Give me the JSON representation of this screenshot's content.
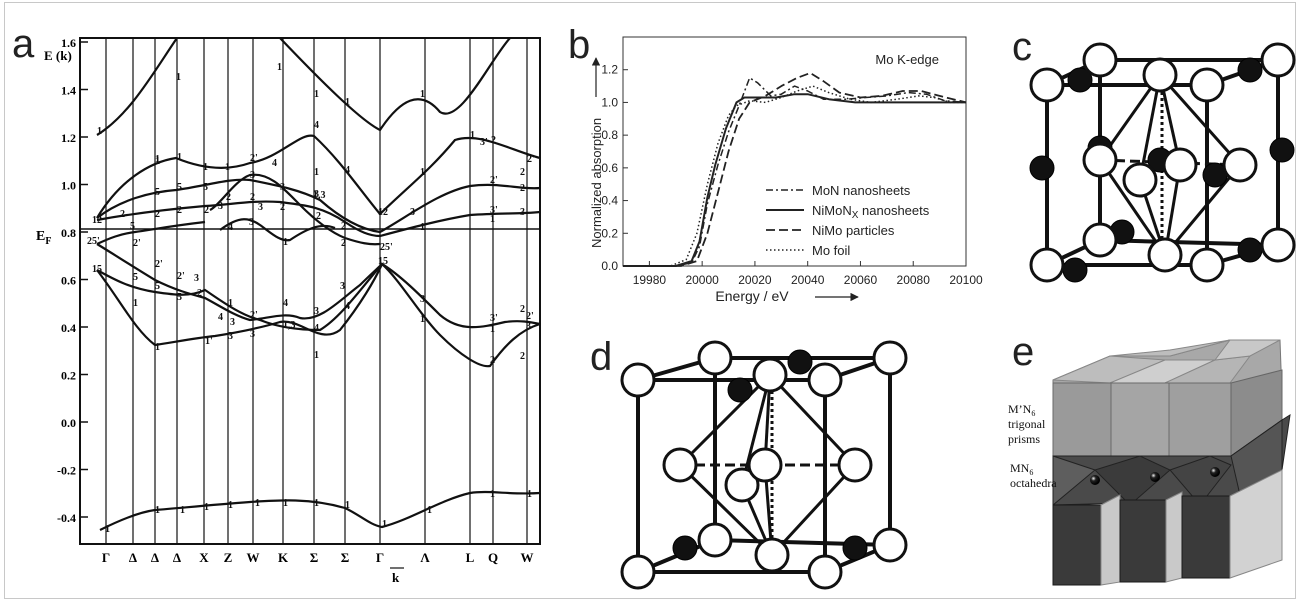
{
  "panels": {
    "a": {
      "label": "a",
      "y_axis_label": "E (k)",
      "fermi_label": "E",
      "fermi_sub": "F",
      "k_label": "k",
      "y_ticks": [
        "1.6",
        "1.4",
        "1.2",
        "1.0",
        "0.8",
        "0.6",
        "0.4",
        "0.2",
        "0.0",
        "-0.2",
        "-0.4"
      ],
      "k_points": [
        "Γ",
        "Δ",
        "Δ",
        "Δ",
        "X",
        "Z",
        "W",
        "K",
        "Σ",
        "Σ",
        "Γ",
        "Λ",
        "L",
        "Q",
        "W"
      ],
      "band_labels": [
        {
          "t": "1",
          "x": 97,
          "y": 134
        },
        {
          "t": "1",
          "x": 155,
          "y": 164
        },
        {
          "t": "1",
          "x": 176,
          "y": 80
        },
        {
          "t": "1",
          "x": 277,
          "y": 70
        },
        {
          "t": "1",
          "x": 314,
          "y": 97
        },
        {
          "t": "1",
          "x": 345,
          "y": 105
        },
        {
          "t": "1",
          "x": 420,
          "y": 97
        },
        {
          "t": "1",
          "x": 470,
          "y": 138
        },
        {
          "t": "4",
          "x": 314,
          "y": 128
        },
        {
          "t": "4",
          "x": 345,
          "y": 173
        },
        {
          "t": "4",
          "x": 272,
          "y": 166
        },
        {
          "t": "1",
          "x": 155,
          "y": 162
        },
        {
          "t": "1",
          "x": 177,
          "y": 160
        },
        {
          "t": "1",
          "x": 203,
          "y": 170
        },
        {
          "t": "1",
          "x": 225,
          "y": 170
        },
        {
          "t": "2'",
          "x": 250,
          "y": 161
        },
        {
          "t": "1",
          "x": 314,
          "y": 175
        },
        {
          "t": "5",
          "x": 155,
          "y": 195
        },
        {
          "t": "5",
          "x": 177,
          "y": 190
        },
        {
          "t": "5",
          "x": 203,
          "y": 190
        },
        {
          "t": "3",
          "x": 250,
          "y": 178
        },
        {
          "t": "3",
          "x": 280,
          "y": 190
        },
        {
          "t": "3",
          "x": 314,
          "y": 197
        },
        {
          "t": "1,3",
          "x": 313,
          "y": 198
        },
        {
          "t": "1",
          "x": 420,
          "y": 175
        },
        {
          "t": "3'",
          "x": 480,
          "y": 145
        },
        {
          "t": "2'",
          "x": 490,
          "y": 183
        },
        {
          "t": "3'",
          "x": 490,
          "y": 213
        },
        {
          "t": "2",
          "x": 491,
          "y": 143
        },
        {
          "t": "2",
          "x": 520,
          "y": 175
        },
        {
          "t": "2",
          "x": 520,
          "y": 191
        },
        {
          "t": "3",
          "x": 520,
          "y": 215
        },
        {
          "t": "2'",
          "x": 527,
          "y": 162
        },
        {
          "t": "12",
          "x": 92,
          "y": 223
        },
        {
          "t": "2",
          "x": 120,
          "y": 217
        },
        {
          "t": "5",
          "x": 130,
          "y": 229
        },
        {
          "t": "2",
          "x": 155,
          "y": 217
        },
        {
          "t": "2",
          "x": 177,
          "y": 213
        },
        {
          "t": "2",
          "x": 204,
          "y": 213
        },
        {
          "t": "3",
          "x": 218,
          "y": 209
        },
        {
          "t": "2",
          "x": 226,
          "y": 200
        },
        {
          "t": "2",
          "x": 250,
          "y": 200
        },
        {
          "t": "3",
          "x": 258,
          "y": 210
        },
        {
          "t": "2",
          "x": 280,
          "y": 210
        },
        {
          "t": "2",
          "x": 316,
          "y": 219
        },
        {
          "t": "4",
          "x": 228,
          "y": 230
        },
        {
          "t": "3",
          "x": 249,
          "y": 225
        },
        {
          "t": "1",
          "x": 283,
          "y": 245
        },
        {
          "t": "2",
          "x": 341,
          "y": 229
        },
        {
          "t": "12",
          "x": 378,
          "y": 215
        },
        {
          "t": "3",
          "x": 410,
          "y": 215
        },
        {
          "t": "1",
          "x": 420,
          "y": 230
        },
        {
          "t": "1",
          "x": 490,
          "y": 222
        },
        {
          "t": "25'",
          "x": 87,
          "y": 244
        },
        {
          "t": "2'",
          "x": 133,
          "y": 246
        },
        {
          "t": "2",
          "x": 341,
          "y": 246
        },
        {
          "t": "25'",
          "x": 380,
          "y": 250
        },
        {
          "t": "15",
          "x": 92,
          "y": 272
        },
        {
          "t": "5",
          "x": 133,
          "y": 280
        },
        {
          "t": "2'",
          "x": 155,
          "y": 267
        },
        {
          "t": "5",
          "x": 155,
          "y": 289
        },
        {
          "t": "2'",
          "x": 177,
          "y": 279
        },
        {
          "t": "5",
          "x": 177,
          "y": 300
        },
        {
          "t": "3",
          "x": 194,
          "y": 281
        },
        {
          "t": "2",
          "x": 197,
          "y": 296
        },
        {
          "t": "15",
          "x": 378,
          "y": 264
        },
        {
          "t": "3",
          "x": 340,
          "y": 289
        },
        {
          "t": "3",
          "x": 420,
          "y": 302
        },
        {
          "t": "1",
          "x": 133,
          "y": 306
        },
        {
          "t": "4",
          "x": 218,
          "y": 320
        },
        {
          "t": "1",
          "x": 228,
          "y": 306
        },
        {
          "t": "3",
          "x": 230,
          "y": 325
        },
        {
          "t": "2'",
          "x": 250,
          "y": 318
        },
        {
          "t": "4",
          "x": 283,
          "y": 306
        },
        {
          "t": "1,3",
          "x": 283,
          "y": 328
        },
        {
          "t": "3",
          "x": 314,
          "y": 314
        },
        {
          "t": "4",
          "x": 314,
          "y": 331
        },
        {
          "t": "4",
          "x": 345,
          "y": 309
        },
        {
          "t": "1",
          "x": 420,
          "y": 322
        },
        {
          "t": "3'",
          "x": 490,
          "y": 321
        },
        {
          "t": "2",
          "x": 520,
          "y": 312
        },
        {
          "t": "2'",
          "x": 526,
          "y": 319
        },
        {
          "t": "3",
          "x": 526,
          "y": 329
        },
        {
          "t": "1",
          "x": 490,
          "y": 332
        },
        {
          "t": "1",
          "x": 155,
          "y": 350
        },
        {
          "t": "1'",
          "x": 205,
          "y": 344
        },
        {
          "t": "3",
          "x": 228,
          "y": 339
        },
        {
          "t": "3",
          "x": 250,
          "y": 337
        },
        {
          "t": "1",
          "x": 314,
          "y": 358
        },
        {
          "t": "2'",
          "x": 490,
          "y": 363
        },
        {
          "t": "2",
          "x": 520,
          "y": 359
        },
        {
          "t": "1",
          "x": 105,
          "y": 532
        },
        {
          "t": "1",
          "x": 155,
          "y": 513
        },
        {
          "t": "1",
          "x": 180,
          "y": 513
        },
        {
          "t": "1",
          "x": 204,
          "y": 510
        },
        {
          "t": "1",
          "x": 228,
          "y": 508
        },
        {
          "t": "1",
          "x": 255,
          "y": 506
        },
        {
          "t": "1",
          "x": 283,
          "y": 506
        },
        {
          "t": "1",
          "x": 314,
          "y": 506
        },
        {
          "t": "1",
          "x": 345,
          "y": 508
        },
        {
          "t": "1",
          "x": 382,
          "y": 527
        },
        {
          "t": "1",
          "x": 427,
          "y": 513
        },
        {
          "t": "1",
          "x": 490,
          "y": 497
        },
        {
          "t": "1",
          "x": 527,
          "y": 497
        }
      ]
    },
    "b": {
      "label": "b",
      "title": "Mo K-edge",
      "xlabel": "Energy / eV",
      "ylabel": "Normalized absorption",
      "legend": [
        "MoN nanosheets",
        "NiMoN",
        "NiMo particles",
        "Mo foil"
      ],
      "legend_sub": "X",
      "legend_suffix": " nanosheets"
    },
    "c": {
      "label": "c"
    },
    "d": {
      "label": "d"
    },
    "e": {
      "label": "e",
      "prism_label_main": "M’N",
      "prism_label_sub": "6",
      "prism_label_rest": [
        "trigonal",
        "prisms"
      ],
      "oct_label_main": "MN",
      "oct_label_sub": "6",
      "oct_label_rest": [
        "octahedra"
      ]
    }
  },
  "chart_data": {
    "type": "line",
    "title": "Mo K-edge",
    "xlabel": "Energy / eV",
    "ylabel": "Normalized absorption",
    "xlim": [
      19970,
      20100
    ],
    "ylim": [
      0.0,
      1.4
    ],
    "x_ticks": [
      19980,
      20000,
      20020,
      20040,
      20060,
      20080,
      20100
    ],
    "y_ticks": [
      0.0,
      0.2,
      0.4,
      0.6,
      0.8,
      1.0,
      1.2
    ],
    "grid": false,
    "legend_position": "center-right",
    "series": [
      {
        "name": "MoN nanosheets",
        "style": "dash-dot",
        "points": [
          [
            19970,
            0.0
          ],
          [
            19990,
            0.0
          ],
          [
            19996,
            0.02
          ],
          [
            19999,
            0.12
          ],
          [
            20002,
            0.38
          ],
          [
            20006,
            0.62
          ],
          [
            20010,
            0.82
          ],
          [
            20014,
            0.98
          ],
          [
            20018,
            1.15
          ],
          [
            20021,
            1.12
          ],
          [
            20026,
            1.04
          ],
          [
            20030,
            1.05
          ],
          [
            20035,
            1.1
          ],
          [
            20040,
            1.07
          ],
          [
            20046,
            1.02
          ],
          [
            20055,
            1.02
          ],
          [
            20062,
            1.03
          ],
          [
            20070,
            1.04
          ],
          [
            20078,
            1.06
          ],
          [
            20085,
            1.05
          ],
          [
            20092,
            1.01
          ],
          [
            20100,
            1.0
          ]
        ]
      },
      {
        "name": "NiMoNX nanosheets",
        "style": "solid",
        "points": [
          [
            19970,
            0.0
          ],
          [
            19990,
            0.0
          ],
          [
            19996,
            0.03
          ],
          [
            19999,
            0.15
          ],
          [
            20002,
            0.42
          ],
          [
            20005,
            0.62
          ],
          [
            20009,
            0.84
          ],
          [
            20013,
            1.0
          ],
          [
            20016,
            1.03
          ],
          [
            20020,
            1.03
          ],
          [
            20028,
            1.03
          ],
          [
            20035,
            1.05
          ],
          [
            20040,
            1.05
          ],
          [
            20048,
            1.02
          ],
          [
            20058,
            1.0
          ],
          [
            20070,
            1.0
          ],
          [
            20085,
            1.0
          ],
          [
            20100,
            1.0
          ]
        ]
      },
      {
        "name": "NiMo particles",
        "style": "dashed",
        "points": [
          [
            19970,
            0.0
          ],
          [
            19992,
            0.0
          ],
          [
            19998,
            0.03
          ],
          [
            20002,
            0.2
          ],
          [
            20006,
            0.45
          ],
          [
            20010,
            0.7
          ],
          [
            20014,
            0.9
          ],
          [
            20018,
            1.0
          ],
          [
            20024,
            1.04
          ],
          [
            20030,
            1.1
          ],
          [
            20036,
            1.15
          ],
          [
            20041,
            1.18
          ],
          [
            20046,
            1.13
          ],
          [
            20052,
            1.06
          ],
          [
            20060,
            1.03
          ],
          [
            20068,
            1.04
          ],
          [
            20076,
            1.07
          ],
          [
            20083,
            1.07
          ],
          [
            20090,
            1.04
          ],
          [
            20100,
            1.0
          ]
        ]
      },
      {
        "name": "Mo foil",
        "style": "dotted",
        "points": [
          [
            19970,
            0.0
          ],
          [
            19988,
            0.0
          ],
          [
            19994,
            0.04
          ],
          [
            19998,
            0.2
          ],
          [
            20002,
            0.5
          ],
          [
            20006,
            0.75
          ],
          [
            20010,
            0.92
          ],
          [
            20013,
            0.98
          ],
          [
            20018,
            1.01
          ],
          [
            20024,
            1.0
          ],
          [
            20030,
            1.03
          ],
          [
            20036,
            1.07
          ],
          [
            20042,
            1.1
          ],
          [
            20048,
            1.06
          ],
          [
            20056,
            1.02
          ],
          [
            20064,
            1.0
          ],
          [
            20074,
            1.02
          ],
          [
            20082,
            1.04
          ],
          [
            20088,
            1.03
          ],
          [
            20094,
            1.0
          ],
          [
            20100,
            1.0
          ]
        ]
      }
    ]
  }
}
